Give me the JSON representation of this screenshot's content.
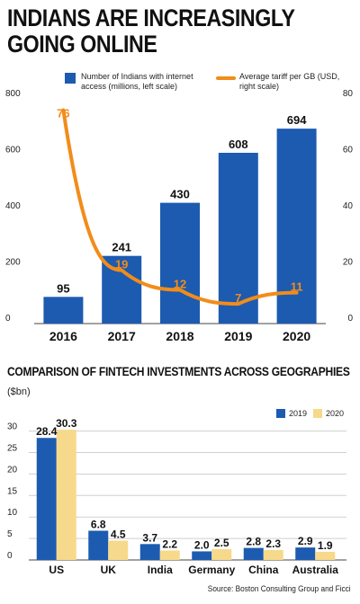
{
  "title": "INDIANS ARE INCREASINGLY GOING ONLINE",
  "chart_data": [
    {
      "type": "bar",
      "categories": [
        "2016",
        "2017",
        "2018",
        "2019",
        "2020"
      ],
      "series": [
        {
          "name": "Number of Indians with internet access (millions, left scale)",
          "type": "bar",
          "values": [
            95,
            241,
            430,
            608,
            694
          ],
          "axis": "left",
          "color": "#1c5bb0"
        },
        {
          "name": "Average tariff per GB (USD, right scale)",
          "type": "line",
          "values": [
            76,
            19,
            12,
            7,
            11
          ],
          "axis": "right",
          "color": "#f28c1a"
        }
      ],
      "left_ticks": [
        0,
        200,
        400,
        600,
        800
      ],
      "right_ticks": [
        0,
        20,
        40,
        60,
        80
      ],
      "ylim_left": [
        0,
        800
      ],
      "ylim_right": [
        0,
        80
      ],
      "grid": false,
      "legend_placement": "top"
    },
    {
      "type": "bar",
      "title": "COMPARISON OF FINTECH INVESTMENTS ACROSS GEOGRAPHIES",
      "unit": "($bn)",
      "categories": [
        "US",
        "UK",
        "India",
        "Germany",
        "China",
        "Australia"
      ],
      "series": [
        {
          "name": "2019",
          "values": [
            28.4,
            6.8,
            3.7,
            2.0,
            2.8,
            2.9
          ],
          "label_text": [
            "28.4",
            "6.8",
            "3.7",
            "2.0",
            "2.8",
            "2.9"
          ],
          "color": "#1c5bb0"
        },
        {
          "name": "2020",
          "values": [
            30.3,
            4.5,
            2.2,
            2.5,
            2.3,
            1.9
          ],
          "label_text": [
            "30.3",
            "4.5",
            "2.2",
            "2.5",
            "2.3",
            "1.9"
          ],
          "color": "#f7d98b"
        }
      ],
      "y_ticks": [
        0,
        5,
        10,
        15,
        20,
        25,
        30
      ],
      "ylim": [
        0,
        32
      ],
      "grid": true,
      "legend_placement": "top-right"
    }
  ],
  "source": "Source: Boston Consulting Group and Ficci"
}
